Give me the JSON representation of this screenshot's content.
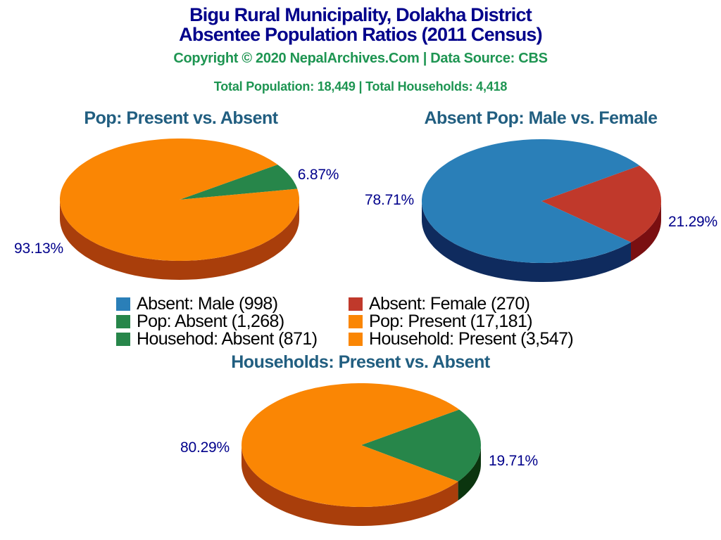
{
  "header": {
    "title_line1": "Bigu Rural Municipality, Dolakha District",
    "title_line2": "Absentee Population Ratios (2011 Census)",
    "copyright": "Copyright © 2020 NepalArchives.Com | Data Source: CBS",
    "totals": "Total Population: 18,449 | Total Households: 4,418"
  },
  "colors": {
    "title_navy": "#00008B",
    "subtitle_green": "#1E9552",
    "pie_title_blue": "#215E80",
    "percent_label_navy": "#00008B",
    "blue": "#2A7FB8",
    "red": "#C0392B",
    "green": "#27864A",
    "orange": "#FA8604",
    "blue_side": "#0F2B5E",
    "red_side": "#7A0F11",
    "green_side": "#0B350F",
    "orange_side": "#A93E0B"
  },
  "chart_data": [
    {
      "type": "pie",
      "id": "pie-pop-present-vs-absent",
      "title": "Pop: Present vs. Absent",
      "start_angle_deg": 35,
      "clockwise": true,
      "slices": [
        {
          "label": "Pop: Absent",
          "value": 1268,
          "pct": 6.87,
          "pct_label": "6.87%",
          "color_key": "green"
        },
        {
          "label": "Pop: Present",
          "value": 17181,
          "pct": 93.13,
          "pct_label": "93.13%",
          "color_key": "orange"
        }
      ]
    },
    {
      "type": "pie",
      "id": "pie-absent-male-vs-female",
      "title": "Absent Pop: Male vs. Female",
      "start_angle_deg": 35,
      "clockwise": true,
      "slices": [
        {
          "label": "Absent: Female",
          "value": 270,
          "pct": 21.29,
          "pct_label": "21.29%",
          "color_key": "red"
        },
        {
          "label": "Absent: Male",
          "value": 998,
          "pct": 78.71,
          "pct_label": "78.71%",
          "color_key": "blue"
        }
      ]
    },
    {
      "type": "pie",
      "id": "pie-households-present-vs-absent",
      "title": "Households: Present vs. Absent",
      "start_angle_deg": 35,
      "clockwise": true,
      "slices": [
        {
          "label": "Household: Absent",
          "value": 871,
          "pct": 19.71,
          "pct_label": "19.71%",
          "color_key": "green"
        },
        {
          "label": "Household: Present",
          "value": 3547,
          "pct": 80.29,
          "pct_label": "80.29%",
          "color_key": "orange"
        }
      ]
    }
  ],
  "legend": {
    "columns": [
      [
        {
          "label": "Absent: Male (998)",
          "color_key": "blue"
        },
        {
          "label": "Pop: Absent (1,268)",
          "color_key": "green"
        },
        {
          "label": "Househod: Absent (871)",
          "color_key": "green"
        }
      ],
      [
        {
          "label": "Absent: Female (270)",
          "color_key": "red"
        },
        {
          "label": "Pop: Present (17,181)",
          "color_key": "orange"
        },
        {
          "label": "Household: Present (3,547)",
          "color_key": "orange"
        }
      ]
    ]
  }
}
